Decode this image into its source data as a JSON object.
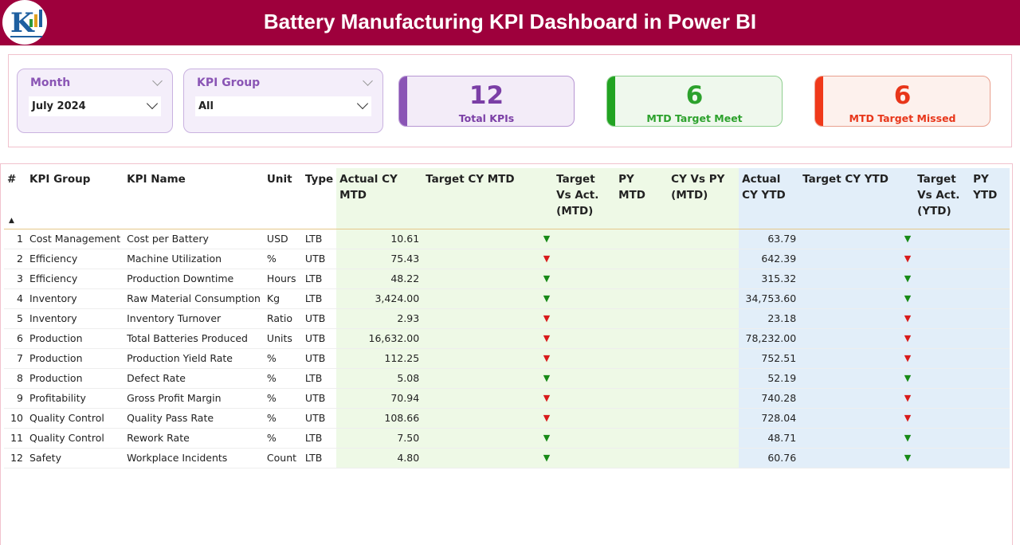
{
  "header": {
    "title": "Battery Manufacturing KPI Dashboard in Power BI"
  },
  "filters": [
    {
      "label": "Month",
      "value": "July 2024"
    },
    {
      "label": "KPI Group",
      "value": "All"
    }
  ],
  "cards": [
    {
      "value": 12,
      "label": "Total KPIs",
      "color": "#7b3fa6",
      "accent": "#8a55b5",
      "background": "#f3ecf8",
      "border": "#b796d3"
    },
    {
      "value": 6,
      "label": "MTD Target Meet",
      "color": "#2ca12c",
      "accent": "#22a322",
      "background": "#eff8ed",
      "border": "#8fcf8f"
    },
    {
      "value": 6,
      "label": "MTD Target Missed",
      "color": "#e8361a",
      "accent": "#f0391a",
      "background": "#fdf1ed",
      "border": "#e9a08e"
    }
  ],
  "table": {
    "columns": [
      "#",
      "KPI Group",
      "KPI Name",
      "Unit",
      "Type",
      "Actual CY MTD",
      "Target CY MTD",
      "Target Vs Act. (MTD)",
      "PY MTD",
      "CY Vs PY (MTD)",
      "Actual CY YTD",
      "Target CY YTD",
      "Target Vs Act. (YTD)",
      "PY YTD"
    ],
    "rows": [
      {
        "no": 1,
        "kpi_group": "Cost Management",
        "kpi_name": "Cost per Battery",
        "unit": "USD",
        "type": "LTB",
        "actual_cy_mtd": "10.61",
        "mtd_status": "▼",
        "mtd_color": "#178a17",
        "actual_cy_ytd": "63.79",
        "ytd_status": "▼",
        "ytd_color": "#178a17"
      },
      {
        "no": 2,
        "kpi_group": "Efficiency",
        "kpi_name": "Machine Utilization",
        "unit": "%",
        "type": "UTB",
        "actual_cy_mtd": "75.43",
        "mtd_status": "▼",
        "mtd_color": "#d81b1b",
        "actual_cy_ytd": "642.39",
        "ytd_status": "▼",
        "ytd_color": "#d81b1b"
      },
      {
        "no": 3,
        "kpi_group": "Efficiency",
        "kpi_name": "Production Downtime",
        "unit": "Hours",
        "type": "LTB",
        "actual_cy_mtd": "48.22",
        "mtd_status": "▼",
        "mtd_color": "#178a17",
        "actual_cy_ytd": "315.32",
        "ytd_status": "▼",
        "ytd_color": "#178a17"
      },
      {
        "no": 4,
        "kpi_group": "Inventory",
        "kpi_name": "Raw Material Consumption",
        "unit": "Kg",
        "type": "LTB",
        "actual_cy_mtd": "3,424.00",
        "mtd_status": "▼",
        "mtd_color": "#178a17",
        "actual_cy_ytd": "34,753.60",
        "ytd_status": "▼",
        "ytd_color": "#178a17"
      },
      {
        "no": 5,
        "kpi_group": "Inventory",
        "kpi_name": "Inventory Turnover",
        "unit": "Ratio",
        "type": "UTB",
        "actual_cy_mtd": "2.93",
        "mtd_status": "▼",
        "mtd_color": "#d81b1b",
        "actual_cy_ytd": "23.18",
        "ytd_status": "▼",
        "ytd_color": "#d81b1b"
      },
      {
        "no": 6,
        "kpi_group": "Production",
        "kpi_name": "Total Batteries Produced",
        "unit": "Units",
        "type": "UTB",
        "actual_cy_mtd": "16,632.00",
        "mtd_status": "▼",
        "mtd_color": "#d81b1b",
        "actual_cy_ytd": "78,232.00",
        "ytd_status": "▼",
        "ytd_color": "#d81b1b"
      },
      {
        "no": 7,
        "kpi_group": "Production",
        "kpi_name": "Production Yield Rate",
        "unit": "%",
        "type": "UTB",
        "actual_cy_mtd": "112.25",
        "mtd_status": "▼",
        "mtd_color": "#d81b1b",
        "actual_cy_ytd": "752.51",
        "ytd_status": "▼",
        "ytd_color": "#d81b1b"
      },
      {
        "no": 8,
        "kpi_group": "Production",
        "kpi_name": "Defect Rate",
        "unit": "%",
        "type": "LTB",
        "actual_cy_mtd": "5.08",
        "mtd_status": "▼",
        "mtd_color": "#178a17",
        "actual_cy_ytd": "52.19",
        "ytd_status": "▼",
        "ytd_color": "#178a17"
      },
      {
        "no": 9,
        "kpi_group": "Profitability",
        "kpi_name": "Gross Profit Margin",
        "unit": "%",
        "type": "UTB",
        "actual_cy_mtd": "70.94",
        "mtd_status": "▼",
        "mtd_color": "#d81b1b",
        "actual_cy_ytd": "740.28",
        "ytd_status": "▼",
        "ytd_color": "#d81b1b"
      },
      {
        "no": 10,
        "kpi_group": "Quality Control",
        "kpi_name": "Quality Pass Rate",
        "unit": "%",
        "type": "UTB",
        "actual_cy_mtd": "108.66",
        "mtd_status": "▼",
        "mtd_color": "#d81b1b",
        "actual_cy_ytd": "728.04",
        "ytd_status": "▼",
        "ytd_color": "#d81b1b"
      },
      {
        "no": 11,
        "kpi_group": "Quality Control",
        "kpi_name": "Rework Rate",
        "unit": "%",
        "type": "LTB",
        "actual_cy_mtd": "7.50",
        "mtd_status": "▼",
        "mtd_color": "#178a17",
        "actual_cy_ytd": "48.71",
        "ytd_status": "▼",
        "ytd_color": "#178a17"
      },
      {
        "no": 12,
        "kpi_group": "Safety",
        "kpi_name": "Workplace Incidents",
        "unit": "Count",
        "type": "LTB",
        "actual_cy_mtd": "4.80",
        "mtd_status": "▼",
        "mtd_color": "#178a17",
        "actual_cy_ytd": "60.76",
        "ytd_status": "▼",
        "ytd_color": "#178a17"
      }
    ]
  }
}
